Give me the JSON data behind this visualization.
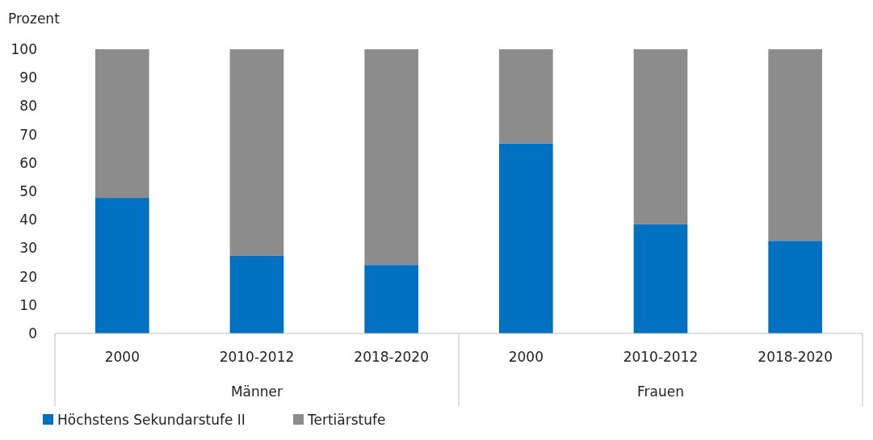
{
  "chart_data": {
    "type": "bar",
    "stacked": true,
    "ylabel": "Prozent",
    "categories": [
      "2000",
      "2010-2012",
      "2018-2020",
      "2000",
      "2010-2012",
      "2018-2020"
    ],
    "series": [
      {
        "name": "Höchstens Sekundarstufe II",
        "color": "#0070c0",
        "values": [
          47.7,
          27.3,
          24.1,
          66.9,
          38.4,
          32.6
        ]
      },
      {
        "name": "Tertiärstufe",
        "color": "#8c8c8c",
        "values": [
          52.3,
          72.7,
          75.9,
          33.1,
          61.6,
          67.4
        ]
      }
    ],
    "ylim": [
      0,
      100
    ],
    "yticks": [
      0,
      10,
      20,
      30,
      40,
      50,
      60,
      70,
      80,
      90,
      100
    ],
    "annotations": [
      "Männer",
      "Frauen"
    ],
    "legend": "bottom left"
  }
}
